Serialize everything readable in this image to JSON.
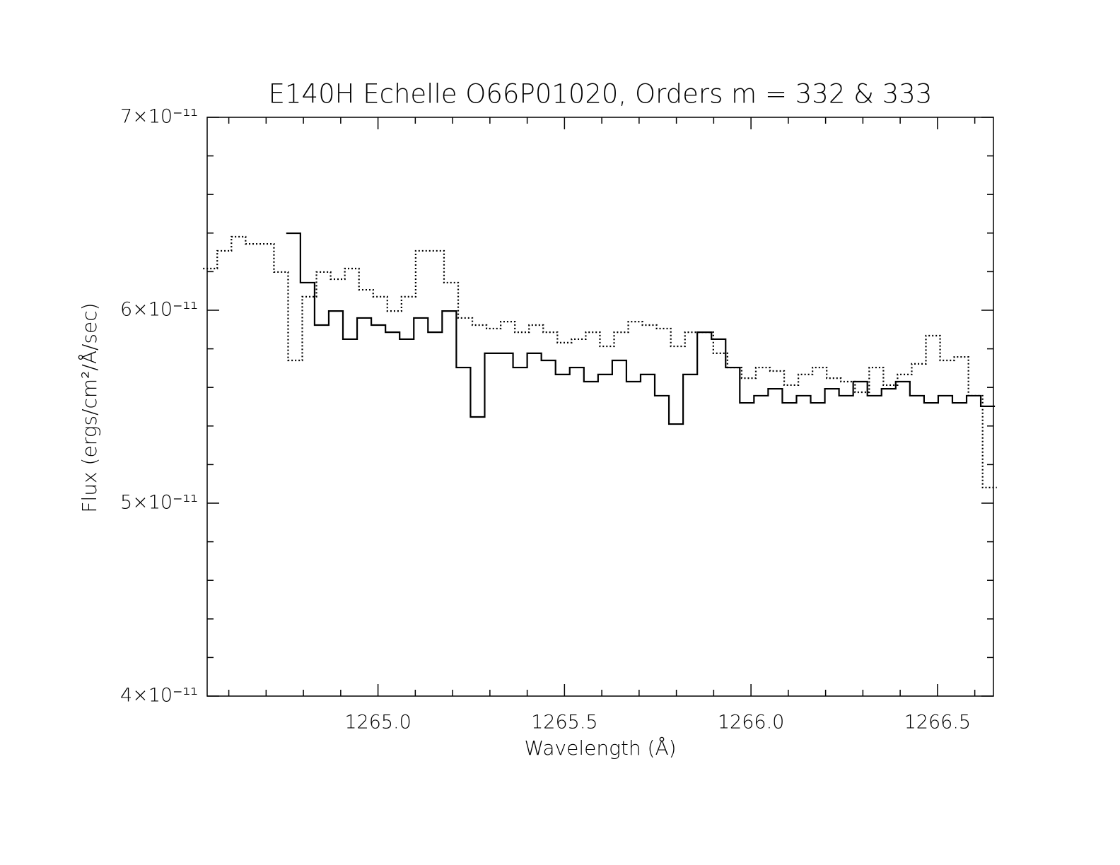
{
  "chart_data": {
    "type": "step",
    "title": "E140H Echelle O66P01020, Orders m = 332 & 333",
    "x_label": "Wavelength (Å)",
    "y_label": "Flux (ergs/cm²/Å/sec)",
    "xlim": [
      1264.542,
      1266.65
    ],
    "ylim": [
      4e-11,
      7e-11
    ],
    "xticks": [
      {
        "value": 1265,
        "label": "1265.0"
      },
      {
        "value": 1265.5,
        "label": "1265.5"
      },
      {
        "value": 1266,
        "label": "1266.0"
      },
      {
        "value": 1266.5,
        "label": "1266.5"
      }
    ],
    "xminorticks": [
      1264.6,
      1264.7,
      1264.8,
      1264.9,
      1265.1,
      1265.2,
      1265.3,
      1265.4,
      1265.6,
      1265.7,
      1265.8,
      1265.9,
      1266.1,
      1266.2,
      1266.3,
      1266.4,
      1266.6
    ],
    "yticks": [
      {
        "value": 4e-11,
        "label": "4×10⁻¹¹"
      },
      {
        "value": 5e-11,
        "label": "5×10⁻¹¹"
      },
      {
        "value": 6e-11,
        "label": "6×10⁻¹¹"
      },
      {
        "value": 7e-11,
        "label": "7×10⁻¹¹"
      }
    ],
    "yminorticks": [
      4.2e-11,
      4.4e-11,
      4.6e-11,
      4.8e-11,
      5.2e-11,
      5.4e-11,
      5.6e-11,
      5.8e-11,
      6.2e-11,
      6.4e-11,
      6.6e-11,
      6.8e-11
    ],
    "series": [
      {
        "color": "#000000",
        "dash": "dotted",
        "x": [
          1264.55,
          1264.588,
          1264.626,
          1264.664,
          1264.702,
          1264.74,
          1264.778,
          1264.816,
          1264.854,
          1264.892,
          1264.93,
          1264.968,
          1265.006,
          1265.044,
          1265.082,
          1265.12,
          1265.158,
          1265.196,
          1265.234,
          1265.272,
          1265.31,
          1265.348,
          1265.386,
          1265.424,
          1265.462,
          1265.5,
          1265.538,
          1265.576,
          1265.614,
          1265.652,
          1265.69,
          1265.728,
          1265.766,
          1265.804,
          1265.842,
          1265.88,
          1265.918,
          1265.956,
          1265.994,
          1266.032,
          1266.07,
          1266.108,
          1266.146,
          1266.184,
          1266.222,
          1266.26,
          1266.298,
          1266.336,
          1266.374,
          1266.412,
          1266.45,
          1266.488,
          1266.526,
          1266.564,
          1266.602,
          1266.64
        ],
        "values": [
          6.216e-11,
          6.308e-11,
          6.381e-11,
          6.344e-11,
          6.344e-11,
          6.198e-11,
          5.74e-11,
          6.07e-11,
          6.198e-11,
          6.161e-11,
          6.216e-11,
          6.106e-11,
          6.07e-11,
          5.996e-11,
          6.07e-11,
          6.308e-11,
          6.308e-11,
          6.143e-11,
          5.96e-11,
          5.923e-11,
          5.905e-11,
          5.941e-11,
          5.886e-11,
          5.923e-11,
          5.886e-11,
          5.832e-11,
          5.85e-11,
          5.886e-11,
          5.813e-11,
          5.886e-11,
          5.941e-11,
          5.923e-11,
          5.905e-11,
          5.813e-11,
          5.886e-11,
          5.886e-11,
          5.777e-11,
          5.703e-11,
          5.648e-11,
          5.703e-11,
          5.685e-11,
          5.612e-11,
          5.667e-11,
          5.703e-11,
          5.648e-11,
          5.63e-11,
          5.575e-11,
          5.703e-11,
          5.612e-11,
          5.667e-11,
          5.722e-11,
          5.868e-11,
          5.74e-11,
          5.758e-11,
          5.557e-11,
          5.081e-11
        ]
      },
      {
        "color": "#000000",
        "dash": "solid",
        "x": [
          1264.773,
          1264.811,
          1264.849,
          1264.887,
          1264.925,
          1264.963,
          1265.001,
          1265.039,
          1265.077,
          1265.115,
          1265.153,
          1265.191,
          1265.229,
          1265.267,
          1265.305,
          1265.343,
          1265.381,
          1265.419,
          1265.457,
          1265.495,
          1265.533,
          1265.571,
          1265.609,
          1265.647,
          1265.685,
          1265.723,
          1265.761,
          1265.799,
          1265.837,
          1265.875,
          1265.913,
          1265.951,
          1265.989,
          1266.027,
          1266.065,
          1266.103,
          1266.141,
          1266.179,
          1266.217,
          1266.255,
          1266.293,
          1266.331,
          1266.369,
          1266.407,
          1266.445,
          1266.483,
          1266.521,
          1266.559,
          1266.597,
          1266.635
        ],
        "values": [
          6.399e-11,
          6.143e-11,
          5.923e-11,
          5.996e-11,
          5.85e-11,
          5.96e-11,
          5.923e-11,
          5.886e-11,
          5.85e-11,
          5.96e-11,
          5.886e-11,
          5.996e-11,
          5.703e-11,
          5.447e-11,
          5.777e-11,
          5.777e-11,
          5.703e-11,
          5.777e-11,
          5.74e-11,
          5.667e-11,
          5.703e-11,
          5.63e-11,
          5.667e-11,
          5.74e-11,
          5.63e-11,
          5.667e-11,
          5.557e-11,
          5.41e-11,
          5.667e-11,
          5.886e-11,
          5.85e-11,
          5.703e-11,
          5.52e-11,
          5.557e-11,
          5.593e-11,
          5.52e-11,
          5.557e-11,
          5.52e-11,
          5.593e-11,
          5.557e-11,
          5.63e-11,
          5.557e-11,
          5.593e-11,
          5.63e-11,
          5.557e-11,
          5.52e-11,
          5.557e-11,
          5.52e-11,
          5.557e-11,
          5.502e-11
        ]
      }
    ]
  }
}
